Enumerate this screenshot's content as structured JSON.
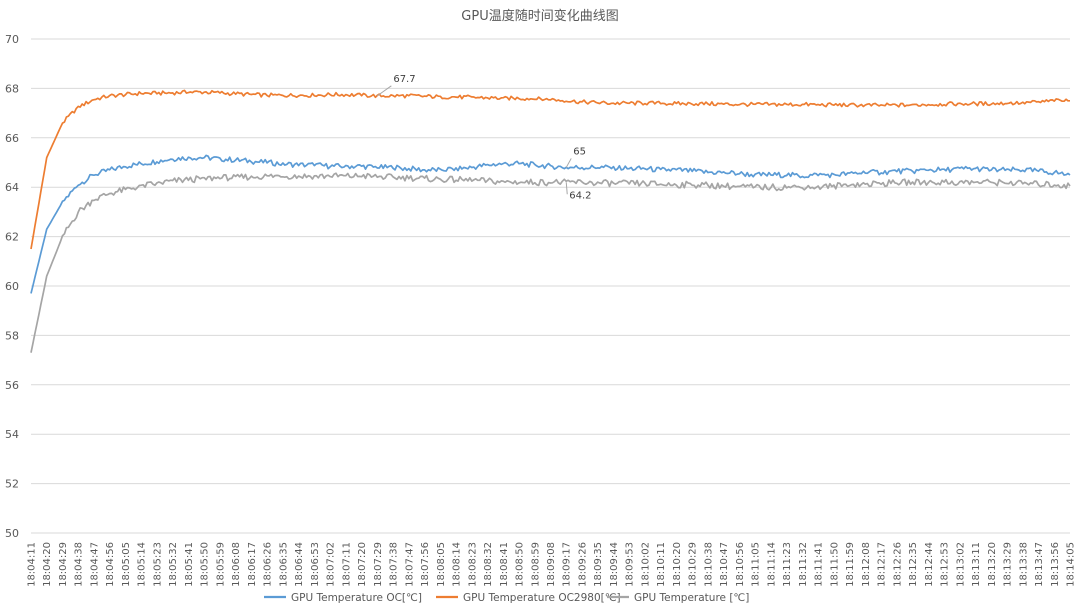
{
  "chart_data": {
    "type": "line",
    "title": "GPU温度随时间变化曲线图",
    "xlabel": "",
    "ylabel": "",
    "ylim": [
      50,
      70
    ],
    "yticks": [
      50,
      52,
      54,
      56,
      58,
      60,
      62,
      64,
      66,
      68,
      70
    ],
    "grid": true,
    "legend_position": "bottom",
    "x_start": "18:04:11",
    "x_end": "18:14:05",
    "categories": [
      "18:04:11",
      "18:04:20",
      "18:04:29",
      "18:04:38",
      "18:04:47",
      "18:04:56",
      "18:05:05",
      "18:05:14",
      "18:05:23",
      "18:05:32",
      "18:05:41",
      "18:05:50",
      "18:05:59",
      "18:06:08",
      "18:06:17",
      "18:06:26",
      "18:06:35",
      "18:06:44",
      "18:06:53",
      "18:07:02",
      "18:07:11",
      "18:07:20",
      "18:07:29",
      "18:07:38",
      "18:07:47",
      "18:07:56",
      "18:08:05",
      "18:08:14",
      "18:08:23",
      "18:08:32",
      "18:08:41",
      "18:08:50",
      "18:08:59",
      "18:09:08",
      "18:09:17",
      "18:09:26",
      "18:09:35",
      "18:09:44",
      "18:09:53",
      "18:10:02",
      "18:10:11",
      "18:10:20",
      "18:10:29",
      "18:10:38",
      "18:10:47",
      "18:10:56",
      "18:11:05",
      "18:11:14",
      "18:11:23",
      "18:11:32",
      "18:11:41",
      "18:11:50",
      "18:11:59",
      "18:12:08",
      "18:12:17",
      "18:12:26",
      "18:12:35",
      "18:12:44",
      "18:12:53",
      "18:13:02",
      "18:13:11",
      "18:13:20",
      "18:13:29",
      "18:13:38",
      "18:13:47",
      "18:13:56",
      "18:14:05"
    ],
    "series": [
      {
        "name": "GPU Temperature OC[℃]",
        "color": "#5b9bd5",
        "values": [
          59.7,
          62.3,
          63.4,
          64.1,
          64.5,
          64.7,
          64.85,
          64.95,
          65.05,
          65.15,
          65.2,
          65.2,
          65.15,
          65.1,
          65.05,
          65.0,
          64.95,
          64.9,
          64.9,
          64.85,
          64.85,
          64.85,
          64.8,
          64.8,
          64.75,
          64.7,
          64.7,
          64.75,
          64.8,
          64.9,
          64.95,
          64.95,
          64.9,
          64.85,
          64.8,
          64.8,
          64.8,
          64.8,
          64.75,
          64.75,
          64.7,
          64.7,
          64.65,
          64.6,
          64.6,
          64.55,
          64.5,
          64.5,
          64.5,
          64.45,
          64.5,
          64.5,
          64.55,
          64.6,
          64.6,
          64.65,
          64.65,
          64.7,
          64.7,
          64.75,
          64.75,
          64.7,
          64.7,
          64.7,
          64.65,
          64.6,
          64.5
        ]
      },
      {
        "name": "GPU Temperature OC2980[℃]",
        "color": "#ed7d31",
        "values": [
          61.5,
          65.2,
          66.6,
          67.25,
          67.55,
          67.7,
          67.75,
          67.8,
          67.8,
          67.82,
          67.85,
          67.85,
          67.82,
          67.78,
          67.75,
          67.72,
          67.72,
          67.72,
          67.72,
          67.75,
          67.75,
          67.72,
          67.7,
          67.7,
          67.7,
          67.68,
          67.66,
          67.65,
          67.64,
          67.62,
          67.6,
          67.6,
          67.58,
          67.55,
          67.5,
          67.45,
          67.42,
          67.4,
          67.4,
          67.4,
          67.4,
          67.38,
          67.38,
          67.38,
          67.36,
          67.35,
          67.35,
          67.35,
          67.35,
          67.35,
          67.34,
          67.33,
          67.33,
          67.32,
          67.32,
          67.32,
          67.33,
          67.35,
          67.36,
          67.38,
          67.38,
          67.38,
          67.4,
          67.42,
          67.45,
          67.5,
          67.5
        ]
      },
      {
        "name": "GPU Temperature [℃]",
        "color": "#a5a5a5",
        "values": [
          57.3,
          60.4,
          62.0,
          63.0,
          63.5,
          63.75,
          63.9,
          64.05,
          64.15,
          64.25,
          64.3,
          64.35,
          64.38,
          64.4,
          64.42,
          64.45,
          64.45,
          64.45,
          64.45,
          64.45,
          64.45,
          64.45,
          64.42,
          64.4,
          64.38,
          64.35,
          64.32,
          64.3,
          64.28,
          64.25,
          64.22,
          64.2,
          64.2,
          64.2,
          64.2,
          64.2,
          64.18,
          64.15,
          64.15,
          64.15,
          64.12,
          64.1,
          64.1,
          64.08,
          64.05,
          64.02,
          64.0,
          64.0,
          64.0,
          64.0,
          64.02,
          64.05,
          64.1,
          64.12,
          64.15,
          64.18,
          64.2,
          64.2,
          64.2,
          64.2,
          64.2,
          64.2,
          64.18,
          64.15,
          64.12,
          64.1,
          64.05
        ]
      }
    ],
    "annotations": [
      {
        "series": 1,
        "index": 22,
        "label": "67.7"
      },
      {
        "series": 0,
        "index": 34,
        "label": "65"
      },
      {
        "series": 2,
        "index": 34,
        "label": "64.2"
      }
    ]
  }
}
